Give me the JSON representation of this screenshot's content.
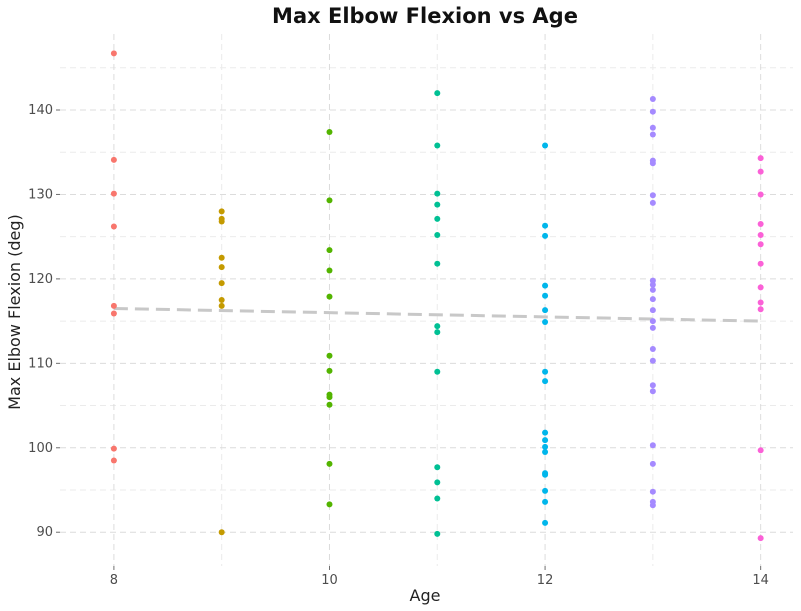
{
  "chart_data": {
    "type": "scatter",
    "title": "Max Elbow Flexion vs Age",
    "xlabel": "Age",
    "ylabel": "Max Elbow Flexion (deg)",
    "xlim": [
      7.5,
      14.3
    ],
    "ylim": [
      86,
      149
    ],
    "x_ticks": [
      8,
      10,
      12,
      14
    ],
    "x_tick_labels": [
      "8",
      "10",
      "12",
      "14"
    ],
    "y_ticks": [
      90,
      100,
      110,
      120,
      130,
      140
    ],
    "y_tick_labels": [
      "90",
      "100",
      "110",
      "120",
      "130",
      "140"
    ],
    "grid": true,
    "legend": "none",
    "trend_line": {
      "x": [
        8,
        14
      ],
      "y": [
        116.5,
        115.0
      ],
      "color": "#c8c8c8"
    },
    "groups": [
      {
        "age": 8,
        "color": "#F8766D",
        "values": [
          146.7,
          134.1,
          130.1,
          126.2,
          116.8,
          115.9,
          99.9,
          98.5
        ]
      },
      {
        "age": 9,
        "color": "#C49A00",
        "values": [
          128.0,
          127.1,
          126.8,
          122.5,
          121.4,
          119.5,
          117.5,
          116.8,
          90.0
        ]
      },
      {
        "age": 10,
        "color": "#53B400",
        "values": [
          137.4,
          129.3,
          123.4,
          121.0,
          117.9,
          110.9,
          109.1,
          106.3,
          106.0,
          105.1,
          98.1,
          93.3
        ]
      },
      {
        "age": 11,
        "color": "#00C094",
        "values": [
          142.0,
          135.8,
          130.1,
          128.8,
          127.1,
          125.2,
          121.8,
          114.4,
          113.7,
          109.0,
          97.7,
          95.9,
          94.0,
          89.8
        ]
      },
      {
        "age": 12,
        "color": "#00B6EB",
        "values": [
          135.8,
          126.3,
          125.1,
          119.2,
          118.0,
          116.3,
          114.9,
          109.0,
          107.9,
          101.8,
          100.9,
          100.1,
          99.5,
          97.0,
          96.8,
          94.9,
          93.6,
          91.1
        ]
      },
      {
        "age": 13,
        "color": "#A58AFF",
        "values": [
          141.3,
          139.8,
          137.9,
          137.1,
          134.0,
          133.7,
          129.9,
          129.0,
          119.8,
          119.3,
          118.7,
          117.6,
          116.3,
          115.0,
          114.2,
          111.7,
          110.3,
          107.4,
          106.7,
          100.3,
          98.1,
          94.8,
          93.6,
          93.2
        ]
      },
      {
        "age": 14,
        "color": "#FB61D7",
        "values": [
          134.3,
          132.7,
          130.0,
          126.5,
          125.2,
          124.1,
          121.8,
          119.0,
          117.2,
          116.4,
          99.7,
          89.3
        ]
      }
    ]
  }
}
